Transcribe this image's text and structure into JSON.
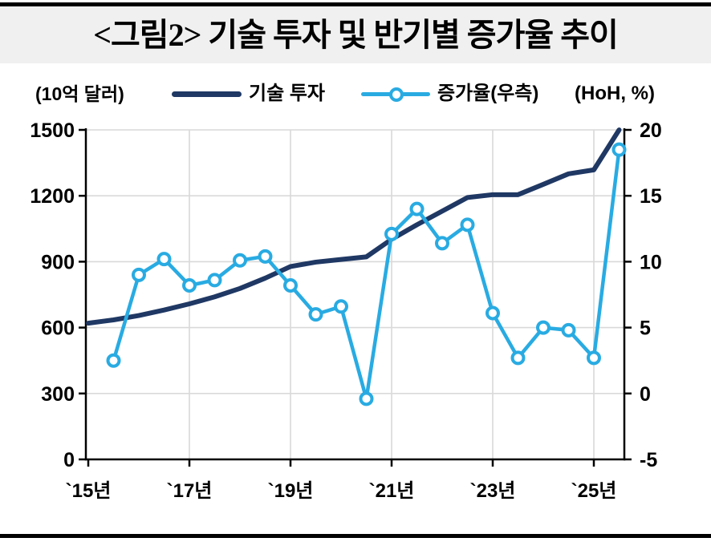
{
  "title": "<그림2> 기술 투자 및 반기별 증가율 추이",
  "legend": {
    "left_unit": "(10억 달러)",
    "right_unit": "(HoH, %)",
    "investment_label": "기술 투자",
    "growth_label": "증가율(우측)"
  },
  "colors": {
    "investment_line": "#1F3864",
    "growth_line": "#29ABE2",
    "gridline": "#D9D9D9",
    "axis": "#000000",
    "title_band_bg": "#F0F0F0",
    "text": "#000000"
  },
  "chart_data": {
    "type": "line",
    "title": "<그림2> 기술 투자 및 반기별 증가율 추이",
    "grid": true,
    "legend_position": "top",
    "x_periods": [
      "2015H1",
      "2015H2",
      "2016H1",
      "2016H2",
      "2017H1",
      "2017H2",
      "2018H1",
      "2018H2",
      "2019H1",
      "2019H2",
      "2020H1",
      "2020H2",
      "2021H1",
      "2021H2",
      "2022H1",
      "2022H2",
      "2023H1",
      "2023H2",
      "2024H1",
      "2024H2",
      "2025H1",
      "2025H2"
    ],
    "x_tick_labels": [
      "`15년",
      "`17년",
      "`19년",
      "`21년",
      "`23년",
      "`25년"
    ],
    "x_tick_period_indexes": [
      0,
      4,
      8,
      12,
      16,
      20
    ],
    "y_left_axis": {
      "label": "(10억 달러)",
      "ticks": [
        0,
        300,
        600,
        900,
        1200,
        1500
      ],
      "range": [
        0,
        1500
      ]
    },
    "y_right_axis": {
      "label": "(HoH, %)",
      "ticks": [
        -5,
        0,
        5,
        10,
        15,
        20
      ],
      "range": [
        -5,
        20
      ]
    },
    "series": [
      {
        "name": "기술 투자",
        "axis": "left",
        "style": "line",
        "color": "#1F3864",
        "values": [
          620,
          635,
          655,
          680,
          708,
          740,
          778,
          825,
          878,
          898,
          910,
          922,
          1002,
          1068,
          1130,
          1192,
          1205,
          1205,
          1252,
          1300,
          1318,
          1500
        ]
      },
      {
        "name": "증가율(우측)",
        "axis": "right",
        "style": "line-markers",
        "color": "#29ABE2",
        "values": [
          null,
          2.5,
          9.0,
          10.2,
          8.2,
          8.6,
          10.1,
          10.4,
          8.2,
          6.0,
          6.6,
          -0.4,
          12.1,
          14.0,
          11.4,
          12.8,
          6.1,
          2.7,
          5.0,
          4.8,
          2.7,
          18.5
        ]
      }
    ]
  }
}
